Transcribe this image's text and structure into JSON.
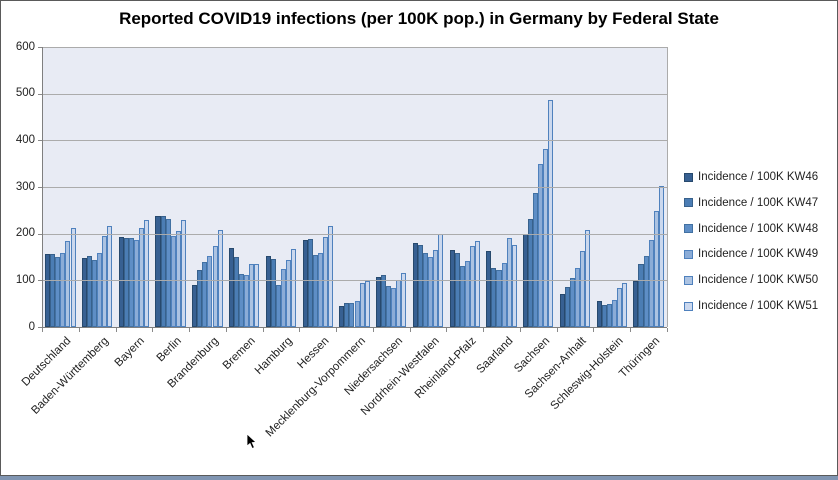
{
  "title": "Reported COVID19 infections (per 100K pop.) in Germany by Federal State",
  "chart_data": {
    "type": "bar",
    "title": "Reported COVID19 infections (per 100K pop.) in Germany by Federal State",
    "categories": [
      "Deutschland",
      "Baden-Württemberg",
      "Bayern",
      "Berlin",
      "Brandenburg",
      "Bremen",
      "Hamburg",
      "Hessen",
      "Mecklenburg-Vorpommern",
      "Niedersachsen",
      "Nordrhein-Westfalen",
      "Rheinland-Pfalz",
      "Saarland",
      "Sachsen",
      "Sachsen-Anhalt",
      "Schleswig-Holstein",
      "Thüringen"
    ],
    "series": [
      {
        "name": "Incidence / 100K KW46",
        "fill": "#376092",
        "border": "#27496d",
        "values": [
          157,
          147,
          193,
          237,
          91,
          170,
          153,
          186,
          46,
          108,
          180,
          165,
          163,
          199,
          70,
          56,
          99
        ]
      },
      {
        "name": "Incidence / 100K KW47",
        "fill": "#4b7db4",
        "border": "#38618c",
        "values": [
          156,
          152,
          190,
          237,
          123,
          151,
          145,
          189,
          51,
          111,
          175,
          158,
          127,
          231,
          86,
          47,
          136
        ]
      },
      {
        "name": "Incidence / 100K KW48",
        "fill": "#5e8ec6",
        "border": "#4271a2",
        "values": [
          151,
          143,
          190,
          232,
          139,
          114,
          89,
          155,
          52,
          88,
          158,
          131,
          122,
          288,
          104,
          49,
          152
        ]
      },
      {
        "name": "Incidence / 100K KW49",
        "fill": "#8bacd7",
        "border": "#4f81bd",
        "values": [
          158,
          158,
          187,
          195,
          152,
          111,
          125,
          159,
          55,
          84,
          150,
          142,
          138,
          350,
          126,
          57,
          186
        ]
      },
      {
        "name": "Incidence / 100K KW50",
        "fill": "#acc3e2",
        "border": "#4f81bd",
        "values": [
          185,
          196,
          212,
          206,
          173,
          136,
          144,
          193,
          94,
          101,
          166,
          173,
          191,
          381,
          163,
          84,
          249
        ]
      },
      {
        "name": "Incidence / 100K KW51",
        "fill": "#cbd8ee",
        "border": "#4f81bd",
        "values": [
          212,
          217,
          230,
          230,
          209,
          134,
          168,
          216,
          98,
          116,
          199,
          185,
          176,
          487,
          207,
          95,
          303
        ]
      }
    ],
    "ylabel": "",
    "xlabel": "",
    "ylim": [
      0,
      600
    ],
    "yticks": [
      0,
      100,
      200,
      300,
      400,
      500,
      600
    ],
    "grid": true,
    "legend_position": "right",
    "plot_background": "#e8ebf4",
    "gridline_color": "#ababab",
    "axis_color": "#898989"
  }
}
